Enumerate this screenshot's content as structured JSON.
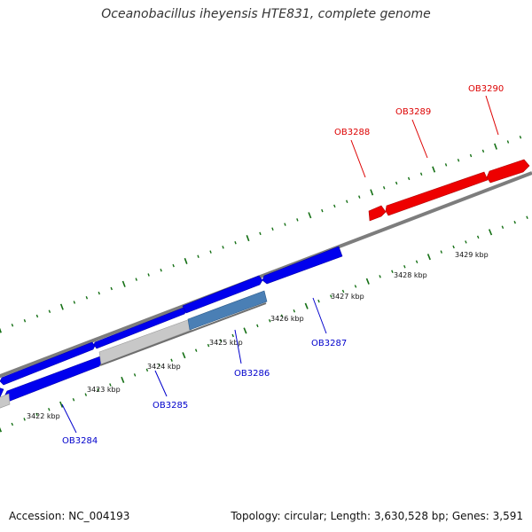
{
  "title": "Oceanobacillus iheyensis HTE831, complete genome",
  "footer": {
    "accession": "Accession: NC_004193",
    "stats": "Topology: circular; Length: 3,630,528 bp; Genes: 3,591"
  },
  "colors": {
    "forward_gene": "#0000ee",
    "reverse_gene": "#ee0000",
    "other_feature": "#c8c8c8",
    "highlight_gene": "#4a7fb5",
    "backbone": "#7d7d7d",
    "tick": "#157015",
    "forward_label": "#0000cc",
    "reverse_label": "#dd0000"
  },
  "kbp_labels": [
    "3422 kbp",
    "3423 kbp",
    "3424 kbp",
    "3425 kbp",
    "3426 kbp",
    "3427 kbp",
    "3428 kbp",
    "3429 kbp"
  ],
  "gene_labels": [
    {
      "text": "OB3284",
      "strand": "forward"
    },
    {
      "text": "OB3285",
      "strand": "forward"
    },
    {
      "text": "OB3286",
      "strand": "forward"
    },
    {
      "text": "OB3287",
      "strand": "forward"
    },
    {
      "text": "OB3288",
      "strand": "reverse"
    },
    {
      "text": "OB3289",
      "strand": "reverse"
    },
    {
      "text": "OB3290",
      "strand": "reverse"
    }
  ]
}
